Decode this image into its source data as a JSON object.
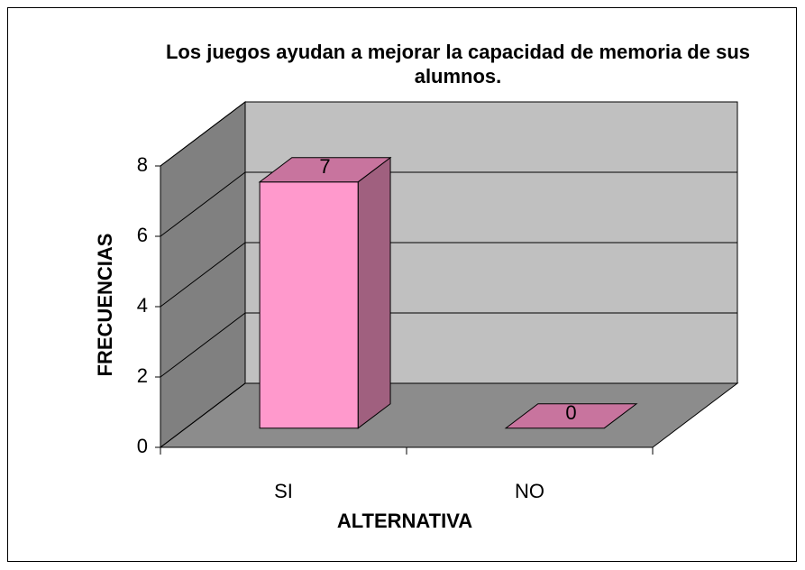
{
  "chart_data": {
    "type": "bar3d",
    "title": "Los juegos ayudan a mejorar la capacidad de memoria de sus alumnos.",
    "x_label": "ALTERNATIVA",
    "y_label": "FRECUENCIAS",
    "categories": [
      "SI",
      "NO"
    ],
    "values": [
      7,
      0
    ],
    "color": "#ff99cc",
    "ylim": [
      0,
      8
    ],
    "yticks": [
      0,
      2,
      4,
      6,
      8
    ],
    "grid": true
  }
}
